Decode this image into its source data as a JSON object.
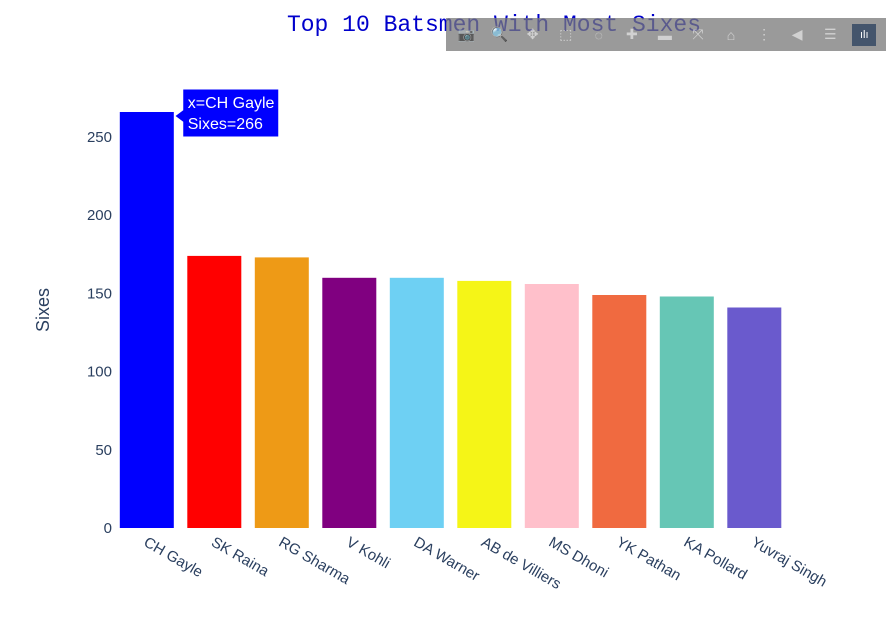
{
  "chart_data": {
    "type": "bar",
    "title": "Top 10 Batsmen With Most Sixes",
    "xlabel": "",
    "ylabel": "Sixes",
    "ylim": [
      0,
      275
    ],
    "yticks": [
      0,
      50,
      100,
      150,
      200,
      250
    ],
    "grid": false,
    "categories": [
      "CH Gayle",
      "SK Raina",
      "RG Sharma",
      "V Kohli",
      "DA Warner",
      "AB de Villiers",
      "MS Dhoni",
      "YK Pathan",
      "KA Pollard",
      "Yuvraj Singh"
    ],
    "values": [
      266,
      174,
      173,
      160,
      160,
      158,
      156,
      149,
      148,
      141
    ],
    "colors": [
      "#0000ff",
      "#ff0000",
      "#ee9a16",
      "#800080",
      "#6ed0f3",
      "#f5f517",
      "#ffc0cb",
      "#f06a40",
      "#66c6b5",
      "#6a5acd"
    ],
    "hover": {
      "category_index": 0,
      "line1": "x=CH Gayle",
      "line2": "Sixes=266",
      "color": "#0000ff"
    }
  },
  "modebar": {
    "buttons": [
      {
        "name": "camera-icon",
        "glyph": "📷",
        "active": false
      },
      {
        "name": "zoom-icon",
        "glyph": "🔍",
        "active": true
      },
      {
        "name": "pan-icon",
        "glyph": "✥",
        "active": false
      },
      {
        "name": "box-select-icon",
        "glyph": "⬚",
        "active": false
      },
      {
        "name": "lasso-select-icon",
        "glyph": "◌",
        "active": false
      },
      {
        "name": "zoom-in-icon",
        "glyph": "✚",
        "active": false
      },
      {
        "name": "zoom-out-icon",
        "glyph": "▬",
        "active": false
      },
      {
        "name": "autoscale-icon",
        "glyph": "⤧",
        "active": false
      },
      {
        "name": "reset-axes-icon",
        "glyph": "⌂",
        "active": false
      },
      {
        "name": "spike-lines-icon",
        "glyph": "⋮",
        "active": false
      },
      {
        "name": "hover-closest-icon",
        "glyph": "◀",
        "active": false
      },
      {
        "name": "hover-compare-icon",
        "glyph": "☰",
        "active": false
      },
      {
        "name": "plotly-logo-icon",
        "glyph": "ılı",
        "active": true
      }
    ]
  }
}
